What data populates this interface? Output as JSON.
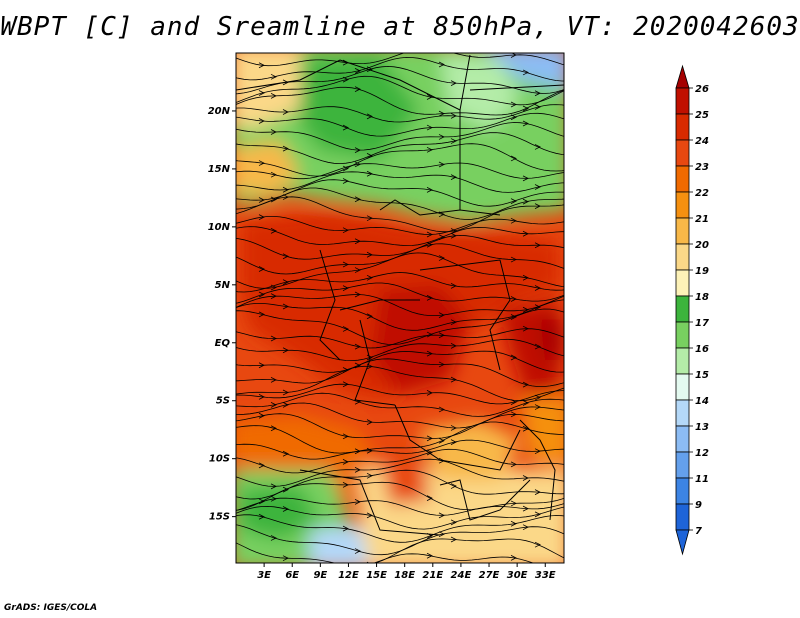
{
  "title": "WBPT [C] and Sreamline at 850hPa, VT: 2020042603",
  "credit": "GrADS: IGES/COLA",
  "map": {
    "region": "Central Africa",
    "variable": "Wet-bulb potential temperature",
    "units": "C",
    "level": "850hPa",
    "valid_time": "2020042603",
    "lon_range": [
      0,
      35
    ],
    "lat_range": [
      -19,
      25
    ],
    "lat_ticks": [
      {
        "value": 20,
        "label": "20N"
      },
      {
        "value": 15,
        "label": "15N"
      },
      {
        "value": 10,
        "label": "10N"
      },
      {
        "value": 5,
        "label": "5N"
      },
      {
        "value": 0,
        "label": "EQ"
      },
      {
        "value": -5,
        "label": "5S"
      },
      {
        "value": -10,
        "label": "10S"
      },
      {
        "value": -15,
        "label": "15S"
      }
    ],
    "lon_ticks": [
      {
        "value": 3,
        "label": "3E"
      },
      {
        "value": 6,
        "label": "6E"
      },
      {
        "value": 9,
        "label": "9E"
      },
      {
        "value": 12,
        "label": "12E"
      },
      {
        "value": 15,
        "label": "15E"
      },
      {
        "value": 18,
        "label": "18E"
      },
      {
        "value": 21,
        "label": "21E"
      },
      {
        "value": 24,
        "label": "24E"
      },
      {
        "value": 27,
        "label": "27E"
      },
      {
        "value": 30,
        "label": "30E"
      },
      {
        "value": 33,
        "label": "33E"
      }
    ]
  },
  "colorbar": {
    "levels": [
      {
        "label": "26",
        "color": "#a50000"
      },
      {
        "label": "25",
        "color": "#c01000"
      },
      {
        "label": "24",
        "color": "#d82a00"
      },
      {
        "label": "23",
        "color": "#e84810"
      },
      {
        "label": "22",
        "color": "#f06a00"
      },
      {
        "label": "21",
        "color": "#f59010"
      },
      {
        "label": "20",
        "color": "#f8b848"
      },
      {
        "label": "19",
        "color": "#fbd888"
      },
      {
        "label": "18",
        "color": "#fdf2b8"
      },
      {
        "label": "17",
        "color": "#3cb43c"
      },
      {
        "label": "16",
        "color": "#78d060"
      },
      {
        "label": "15",
        "color": "#b4eca8"
      },
      {
        "label": "14",
        "color": "#e4faf0"
      },
      {
        "label": "13",
        "color": "#b4d8f8"
      },
      {
        "label": "12",
        "color": "#8cbcf4"
      },
      {
        "label": "11",
        "color": "#64a0ec"
      },
      {
        "label": "9",
        "color": "#3c84e4"
      },
      {
        "label": "7",
        "color": "#1e64d8"
      }
    ],
    "bottom_color": "#1e64d8"
  }
}
